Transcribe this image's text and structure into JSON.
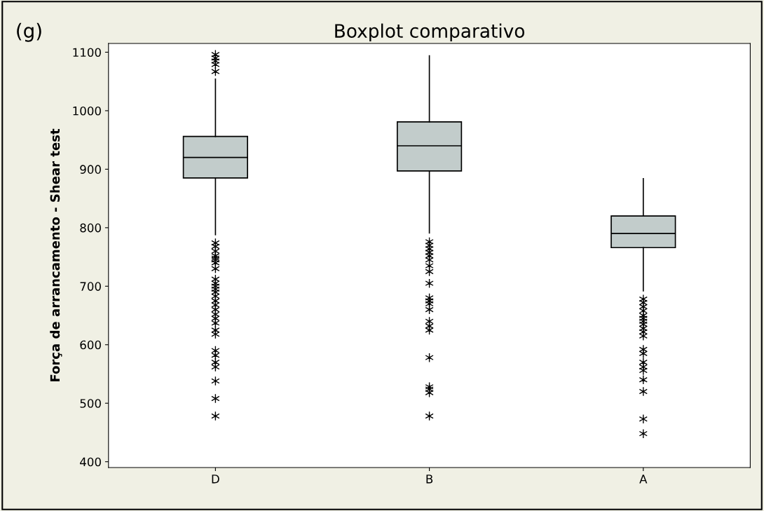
{
  "chart_data": {
    "type": "box",
    "title": "Boxplot comparativo",
    "ylabel": "Força de arrancamento - Shear test",
    "annotations": [
      "(g)"
    ],
    "categories": [
      "D",
      "B",
      "A"
    ],
    "color": "#c2cccb",
    "marker": "star",
    "grid": false,
    "ylim": [
      390,
      1115
    ],
    "yticks": [
      400,
      500,
      600,
      700,
      800,
      900,
      1000,
      1100
    ],
    "boxes": [
      {
        "low": 788,
        "q1": 885,
        "median": 920,
        "q3": 956,
        "high": 1054,
        "outliers": [
          1096,
          1090,
          1085,
          1079,
          1067,
          774,
          768,
          760,
          752,
          748,
          745,
          740,
          730,
          712,
          705,
          700,
          695,
          690,
          683,
          675,
          668,
          660,
          652,
          645,
          637,
          625,
          618,
          590,
          582,
          570,
          562,
          538,
          508,
          478
        ]
      },
      {
        "low": 791,
        "q1": 897,
        "median": 940,
        "q3": 981,
        "high": 1094,
        "outliers": [
          776,
          770,
          764,
          758,
          752,
          745,
          735,
          725,
          705,
          680,
          675,
          670,
          660,
          640,
          632,
          625,
          578,
          528,
          524,
          518,
          478
        ]
      },
      {
        "low": 692,
        "q1": 766,
        "median": 790,
        "q3": 820,
        "high": 884,
        "outliers": [
          678,
          672,
          665,
          658,
          650,
          645,
          640,
          635,
          628,
          622,
          615,
          592,
          585,
          570,
          562,
          556,
          540,
          520,
          473,
          448
        ]
      }
    ]
  }
}
